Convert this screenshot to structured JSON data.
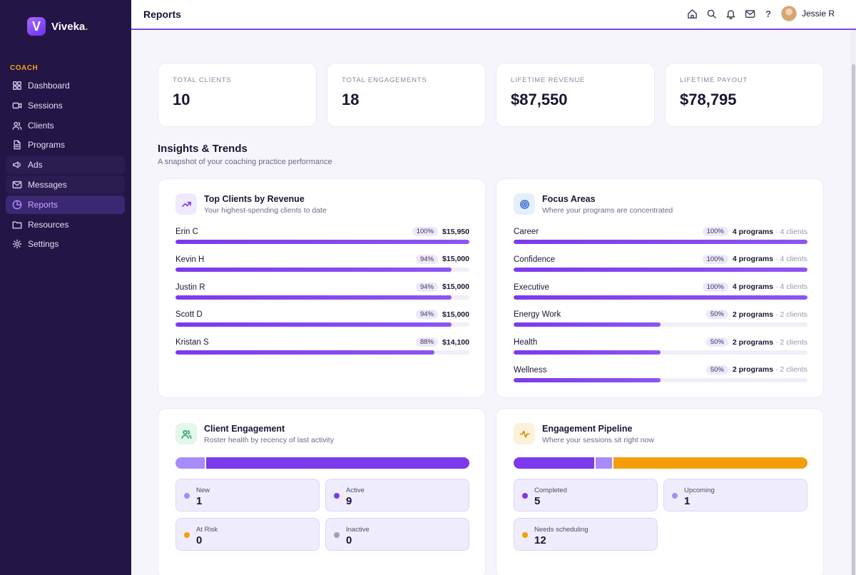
{
  "brand": {
    "name": "Viveka",
    "dot": ".",
    "mark": "V"
  },
  "sidebar": {
    "section": "COACH",
    "items": [
      {
        "label": "Dashboard",
        "icon": "dashboard-icon"
      },
      {
        "label": "Sessions",
        "icon": "video-icon"
      },
      {
        "label": "Clients",
        "icon": "users-icon"
      },
      {
        "label": "Programs",
        "icon": "document-icon"
      },
      {
        "label": "Ads",
        "icon": "megaphone-icon"
      },
      {
        "label": "Messages",
        "icon": "mail-icon"
      },
      {
        "label": "Reports",
        "icon": "pie-chart-icon",
        "active": true
      },
      {
        "label": "Resources",
        "icon": "folder-icon"
      },
      {
        "label": "Settings",
        "icon": "gear-icon"
      }
    ]
  },
  "header": {
    "title": "Reports",
    "help": "?",
    "user": "Jessie R"
  },
  "stats": [
    {
      "label": "TOTAL CLIENTS",
      "value": "10"
    },
    {
      "label": "TOTAL ENGAGEMENTS",
      "value": "18"
    },
    {
      "label": "LIFETIME REVENUE",
      "value": "$87,550"
    },
    {
      "label": "LIFETIME PAYOUT",
      "value": "$78,795"
    }
  ],
  "insights": {
    "title": "Insights & Trends",
    "subtitle": "A snapshot of your coaching practice performance"
  },
  "top_clients": {
    "title": "Top Clients by Revenue",
    "subtitle": "Your highest-spending clients to date",
    "rows": [
      {
        "name": "Erin C",
        "pct": "100%",
        "amount": "$15,950",
        "fill": 100
      },
      {
        "name": "Kevin H",
        "pct": "94%",
        "amount": "$15,000",
        "fill": 94
      },
      {
        "name": "Justin R",
        "pct": "94%",
        "amount": "$15,000",
        "fill": 94
      },
      {
        "name": "Scott D",
        "pct": "94%",
        "amount": "$15,000",
        "fill": 94
      },
      {
        "name": "Kristan S",
        "pct": "88%",
        "amount": "$14,100",
        "fill": 88
      }
    ]
  },
  "focus_areas": {
    "title": "Focus Areas",
    "subtitle": "Where your programs are concentrated",
    "rows": [
      {
        "name": "Career",
        "pct": "100%",
        "programs": "4 programs",
        "clients": "· 4 clients",
        "fill": 100
      },
      {
        "name": "Confidence",
        "pct": "100%",
        "programs": "4 programs",
        "clients": "· 4 clients",
        "fill": 100
      },
      {
        "name": "Executive",
        "pct": "100%",
        "programs": "4 programs",
        "clients": "· 4 clients",
        "fill": 100
      },
      {
        "name": "Energy Work",
        "pct": "50%",
        "programs": "2 programs",
        "clients": "· 2 clients",
        "fill": 50
      },
      {
        "name": "Health",
        "pct": "50%",
        "programs": "2 programs",
        "clients": "· 2 clients",
        "fill": 50
      },
      {
        "name": "Wellness",
        "pct": "50%",
        "programs": "2 programs",
        "clients": "· 2 clients",
        "fill": 50
      }
    ]
  },
  "engagement": {
    "title": "Client Engagement",
    "subtitle": "Roster health by recency of last activity",
    "tiles": [
      {
        "label": "New",
        "value": "1",
        "color": "#a78bfa"
      },
      {
        "label": "Active",
        "value": "9",
        "color": "#7c3aed"
      },
      {
        "label": "At Risk",
        "value": "0",
        "color": "#f59e0b"
      },
      {
        "label": "Inactive",
        "value": "0",
        "color": "#9ca3af"
      }
    ]
  },
  "pipeline": {
    "title": "Engagement Pipeline",
    "subtitle": "Where your sessions sit right now",
    "tiles": [
      {
        "label": "Completed",
        "value": "5",
        "color": "#7c3aed"
      },
      {
        "label": "Upcoming",
        "value": "1",
        "color": "#a78bfa"
      },
      {
        "label": "Needs scheduling",
        "value": "12",
        "color": "#f59e0b"
      }
    ]
  }
}
